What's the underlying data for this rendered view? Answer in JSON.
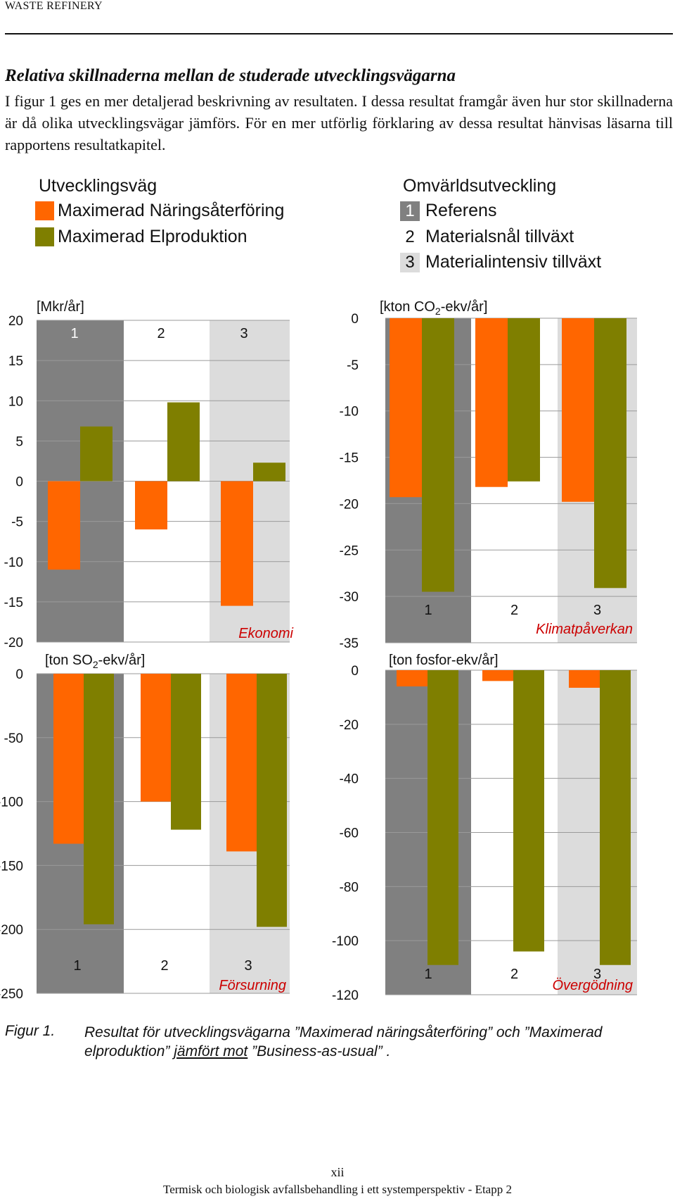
{
  "header": {
    "title": "WASTE REFINERY"
  },
  "section": {
    "heading": "Relativa skillnaderna mellan de studerade utvecklingsvägarna",
    "text": "I figur 1 ges en mer detaljerad beskrivning av resultaten. I dessa resultat framgår även hur stor skillnaderna är då olika utvecklingsvägar jämförs. För en mer utförlig förklaring av dessa resultat hänvisas läsarna till rapportens resultatkapitel."
  },
  "legend": {
    "title": "Utvecklingsväg",
    "items": [
      {
        "label": "Maximerad Näringsåterföring",
        "color": "#ff6600"
      },
      {
        "label": "Maximerad Elproduktion",
        "color": "#7f7f00"
      }
    ]
  },
  "scenarios": {
    "title": "Omvärldsutveckling",
    "items": [
      {
        "num": "1",
        "label": "Referens",
        "bg": "#808080",
        "fg": "#ffffff"
      },
      {
        "num": "2",
        "label": "Materialsnål tillväxt",
        "bg": "#ffffff",
        "fg": "#111111"
      },
      {
        "num": "3",
        "label": "Materialintensiv tillväxt",
        "bg": "#dcdcdc",
        "fg": "#111111"
      }
    ]
  },
  "colors": {
    "naring": "#ff6600",
    "el": "#7f7f00",
    "band1": "#808080",
    "band2": "#ffffff",
    "band3": "#dcdcdc",
    "title_red": "#cc0000"
  },
  "chart_data": [
    {
      "type": "bar",
      "title": "Ekonomi",
      "unit": "[Mkr/år]",
      "categories": [
        "1",
        "2",
        "3"
      ],
      "ylim": [
        -20,
        20
      ],
      "yticks": [
        "20",
        "15",
        "10",
        "5",
        "0",
        "-5",
        "-10",
        "-15",
        "-20"
      ],
      "series": [
        {
          "name": "Maximerad Näringsåterföring",
          "values": [
            -11,
            -6,
            -15.5
          ]
        },
        {
          "name": "Maximerad Elproduktion",
          "values": [
            6.8,
            9.8,
            2.3
          ]
        }
      ]
    },
    {
      "type": "bar",
      "title": "Klimatpåverkan",
      "unit": "[kton CO2-ekv/år]",
      "categories": [
        "1",
        "2",
        "3"
      ],
      "ylim": [
        -35,
        0
      ],
      "yticks": [
        "0",
        "-5",
        "-10",
        "-15",
        "-20",
        "-25",
        "-30",
        "-35"
      ],
      "series": [
        {
          "name": "Maximerad Näringsåterföring",
          "values": [
            -19.3,
            -18.2,
            -19.8
          ]
        },
        {
          "name": "Maximerad Elproduktion",
          "values": [
            -29.5,
            -17.6,
            -29.1
          ]
        }
      ]
    },
    {
      "type": "bar",
      "title": "Försurning",
      "unit": "[ton SO2-ekv/år]",
      "categories": [
        "1",
        "2",
        "3"
      ],
      "ylim": [
        -250,
        0
      ],
      "yticks": [
        "0",
        "-50",
        "-100",
        "-150",
        "-200",
        "-250"
      ],
      "series": [
        {
          "name": "Maximerad Näringsåterföring",
          "values": [
            -133,
            -100,
            -139
          ]
        },
        {
          "name": "Maximerad Elproduktion",
          "values": [
            -196,
            -122,
            -198
          ]
        }
      ]
    },
    {
      "type": "bar",
      "title": "Övergödning",
      "unit": "[ton fosfor-ekv/år]",
      "categories": [
        "1",
        "2",
        "3"
      ],
      "ylim": [
        -120,
        0
      ],
      "yticks": [
        "0",
        "-20",
        "-40",
        "-60",
        "-80",
        "-100",
        "-120"
      ],
      "series": [
        {
          "name": "Maximerad Näringsåterföring",
          "values": [
            -6,
            -4,
            -6.5
          ]
        },
        {
          "name": "Maximerad Elproduktion",
          "values": [
            -109,
            -104,
            -109
          ]
        }
      ]
    }
  ],
  "figure": {
    "label": "Figur 1.",
    "caption_pre": "Resultat för utvecklingsvägarna ”Maximerad näringsåterföring” och ”Maximerad elproduktion” ",
    "caption_underlined": "jämfört mot",
    "caption_post": " ”Business-as-usual” ."
  },
  "footer": {
    "page": "xii",
    "text": "Termisk och biologisk avfallsbehandling i ett systemperspektiv - Etapp 2"
  }
}
